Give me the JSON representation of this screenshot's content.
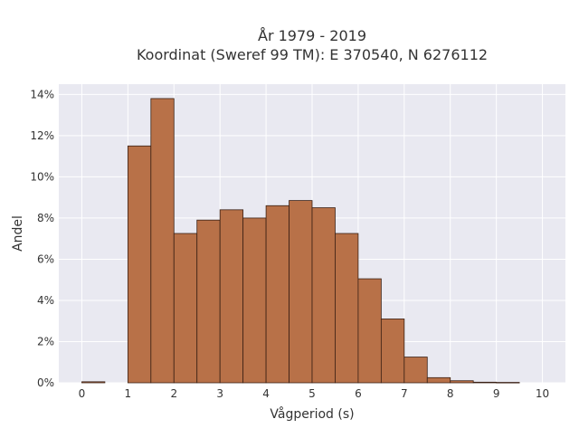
{
  "chart_data": {
    "type": "bar",
    "title_line1": "År 1979 - 2019",
    "title_line2": "Koordinat (Sweref 99 TM): E 370540, N 6276112",
    "xlabel": "Vågperiod (s)",
    "ylabel": "Andel",
    "xlim": [
      -0.5,
      10.5
    ],
    "ylim": [
      0,
      14.5
    ],
    "x_ticks": [
      0,
      1,
      2,
      3,
      4,
      5,
      6,
      7,
      8,
      9,
      10
    ],
    "y_ticks": [
      0,
      2,
      4,
      6,
      8,
      10,
      12,
      14
    ],
    "y_tick_suffix": "%",
    "bin_width": 0.5,
    "bins": [
      {
        "start": 0.0,
        "value": 0.05
      },
      {
        "start": 1.0,
        "value": 11.5
      },
      {
        "start": 1.5,
        "value": 13.8
      },
      {
        "start": 2.0,
        "value": 7.25
      },
      {
        "start": 2.5,
        "value": 7.9
      },
      {
        "start": 3.0,
        "value": 8.4
      },
      {
        "start": 3.5,
        "value": 8.0
      },
      {
        "start": 4.0,
        "value": 8.6
      },
      {
        "start": 4.5,
        "value": 8.85
      },
      {
        "start": 5.0,
        "value": 8.5
      },
      {
        "start": 5.5,
        "value": 7.25
      },
      {
        "start": 6.0,
        "value": 5.05
      },
      {
        "start": 6.5,
        "value": 3.1
      },
      {
        "start": 7.0,
        "value": 1.25
      },
      {
        "start": 7.5,
        "value": 0.25
      },
      {
        "start": 8.0,
        "value": 0.1
      },
      {
        "start": 8.5,
        "value": 0.03
      },
      {
        "start": 9.0,
        "value": 0.02
      }
    ],
    "colors": {
      "bar_fill": "#b87148",
      "bar_stroke": "#3a2014",
      "plot_bg": "#e9e9f1",
      "grid": "#ffffff"
    },
    "grid": true,
    "legend": "none"
  }
}
